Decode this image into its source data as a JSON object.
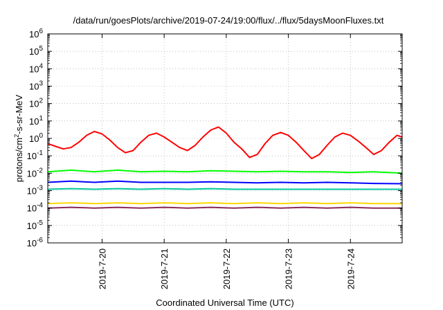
{
  "chart_data": {
    "type": "line",
    "title": "/data/run/goesPlots/archive/2019-07-24/19:00/flux/../flux/5daysMoonFluxes.txt",
    "xlabel": "Coordinated Universal Time (UTC)",
    "ylabel": "protons/cm2-s-sr-MeV",
    "ylabel_main": "protons/cm",
    "ylabel_sup": "2",
    "ylabel_rest": "-s-sr-MeV",
    "yscale": "log",
    "ylim": [
      1e-06,
      1000000.0
    ],
    "xlim": [
      "2019-07-19 03:00",
      "2019-07-24 20:00"
    ],
    "x_ticks": [
      "2019-7-20",
      "2019-7-21",
      "2019-7-22",
      "2019-7-23",
      "2019-7-24"
    ],
    "y_ticks": [
      {
        "base": "10",
        "exp": "-6"
      },
      {
        "base": "10",
        "exp": "-5"
      },
      {
        "base": "10",
        "exp": "-4"
      },
      {
        "base": "10",
        "exp": "-3"
      },
      {
        "base": "10",
        "exp": "-2"
      },
      {
        "base": "10",
        "exp": "-1"
      },
      {
        "base": "10",
        "exp": "0"
      },
      {
        "base": "10",
        "exp": "1"
      },
      {
        "base": "10",
        "exp": "2"
      },
      {
        "base": "10",
        "exp": "3"
      },
      {
        "base": "10",
        "exp": "4"
      },
      {
        "base": "10",
        "exp": "5"
      },
      {
        "base": "10",
        "exp": "6"
      }
    ],
    "grid": true,
    "series": [
      {
        "color": "#ff0000",
        "x": [
          "2019-07-19 03:00",
          "2019-07-19 06:00",
          "2019-07-19 09:00",
          "2019-07-19 12:00",
          "2019-07-19 15:00",
          "2019-07-19 18:00",
          "2019-07-19 21:00",
          "2019-07-20 00:00",
          "2019-07-20 03:00",
          "2019-07-20 06:00",
          "2019-07-20 09:00",
          "2019-07-20 12:00",
          "2019-07-20 15:00",
          "2019-07-20 18:00",
          "2019-07-20 21:00",
          "2019-07-21 00:00",
          "2019-07-21 03:00",
          "2019-07-21 06:00",
          "2019-07-21 09:00",
          "2019-07-21 12:00",
          "2019-07-21 15:00",
          "2019-07-21 18:00",
          "2019-07-21 21:00",
          "2019-07-22 00:00",
          "2019-07-22 03:00",
          "2019-07-22 06:00",
          "2019-07-22 09:00",
          "2019-07-22 12:00",
          "2019-07-22 15:00",
          "2019-07-22 18:00",
          "2019-07-22 21:00",
          "2019-07-23 00:00",
          "2019-07-23 03:00",
          "2019-07-23 06:00",
          "2019-07-23 09:00",
          "2019-07-23 12:00",
          "2019-07-23 15:00",
          "2019-07-23 18:00",
          "2019-07-23 21:00",
          "2019-07-24 00:00",
          "2019-07-24 03:00",
          "2019-07-24 06:00",
          "2019-07-24 09:00",
          "2019-07-24 12:00",
          "2019-07-24 15:00",
          "2019-07-24 18:00",
          "2019-07-24 20:00"
        ],
        "y": [
          0.5,
          0.35,
          0.25,
          0.3,
          0.6,
          1.5,
          2.5,
          1.8,
          0.8,
          0.3,
          0.15,
          0.2,
          0.6,
          1.5,
          2.0,
          1.2,
          0.6,
          0.3,
          0.2,
          0.4,
          1.2,
          3.0,
          4.5,
          2.0,
          0.6,
          0.25,
          0.08,
          0.12,
          0.5,
          1.5,
          2.2,
          1.5,
          0.6,
          0.2,
          0.07,
          0.12,
          0.4,
          1.2,
          2.0,
          1.5,
          0.7,
          0.3,
          0.12,
          0.2,
          0.6,
          1.5,
          1.2
        ]
      },
      {
        "color": "#00ff00",
        "x": [
          "2019-07-19 03:00",
          "2019-07-19 12:00",
          "2019-07-19 21:00",
          "2019-07-20 06:00",
          "2019-07-20 15:00",
          "2019-07-21 00:00",
          "2019-07-21 09:00",
          "2019-07-21 18:00",
          "2019-07-22 03:00",
          "2019-07-22 12:00",
          "2019-07-22 21:00",
          "2019-07-23 06:00",
          "2019-07-23 15:00",
          "2019-07-24 00:00",
          "2019-07-24 09:00",
          "2019-07-24 20:00"
        ],
        "y": [
          0.012,
          0.015,
          0.012,
          0.015,
          0.012,
          0.013,
          0.012,
          0.014,
          0.013,
          0.012,
          0.013,
          0.012,
          0.012,
          0.011,
          0.012,
          0.01
        ]
      },
      {
        "color": "#0000ff",
        "x": [
          "2019-07-19 03:00",
          "2019-07-19 12:00",
          "2019-07-19 21:00",
          "2019-07-20 06:00",
          "2019-07-20 15:00",
          "2019-07-21 00:00",
          "2019-07-21 09:00",
          "2019-07-21 18:00",
          "2019-07-22 03:00",
          "2019-07-22 12:00",
          "2019-07-22 21:00",
          "2019-07-23 06:00",
          "2019-07-23 15:00",
          "2019-07-24 00:00",
          "2019-07-24 09:00",
          "2019-07-24 20:00"
        ],
        "y": [
          0.003,
          0.0035,
          0.003,
          0.0035,
          0.003,
          0.003,
          0.003,
          0.0032,
          0.003,
          0.0028,
          0.003,
          0.0028,
          0.003,
          0.0028,
          0.0026,
          0.0025
        ]
      },
      {
        "color": "#00c8a0",
        "x": [
          "2019-07-19 03:00",
          "2019-07-19 12:00",
          "2019-07-19 21:00",
          "2019-07-20 06:00",
          "2019-07-20 15:00",
          "2019-07-21 00:00",
          "2019-07-21 09:00",
          "2019-07-21 18:00",
          "2019-07-22 03:00",
          "2019-07-22 12:00",
          "2019-07-22 21:00",
          "2019-07-23 06:00",
          "2019-07-23 15:00",
          "2019-07-24 00:00",
          "2019-07-24 09:00",
          "2019-07-24 20:00"
        ],
        "y": [
          0.0012,
          0.0013,
          0.0012,
          0.0013,
          0.0012,
          0.0013,
          0.0012,
          0.0013,
          0.0012,
          0.0012,
          0.0012,
          0.0012,
          0.0012,
          0.0012,
          0.0012,
          0.0012
        ]
      },
      {
        "color": "#ffd700",
        "x": [
          "2019-07-19 03:00",
          "2019-07-19 12:00",
          "2019-07-19 21:00",
          "2019-07-20 06:00",
          "2019-07-20 15:00",
          "2019-07-21 00:00",
          "2019-07-21 09:00",
          "2019-07-21 18:00",
          "2019-07-22 03:00",
          "2019-07-22 12:00",
          "2019-07-22 21:00",
          "2019-07-23 06:00",
          "2019-07-23 15:00",
          "2019-07-24 00:00",
          "2019-07-24 09:00",
          "2019-07-24 20:00"
        ],
        "y": [
          0.00018,
          0.0002,
          0.00018,
          0.0002,
          0.00018,
          0.0002,
          0.00018,
          0.0002,
          0.00018,
          0.0002,
          0.00018,
          0.0002,
          0.00018,
          0.0002,
          0.00018,
          0.00018
        ]
      },
      {
        "color": "#8b2a5a",
        "x": [
          "2019-07-19 03:00",
          "2019-07-19 12:00",
          "2019-07-19 21:00",
          "2019-07-20 06:00",
          "2019-07-20 15:00",
          "2019-07-21 00:00",
          "2019-07-21 09:00",
          "2019-07-21 18:00",
          "2019-07-22 03:00",
          "2019-07-22 12:00",
          "2019-07-22 21:00",
          "2019-07-23 06:00",
          "2019-07-23 15:00",
          "2019-07-24 00:00",
          "2019-07-24 09:00",
          "2019-07-24 20:00"
        ],
        "y": [
          0.0001,
          0.00011,
          0.0001,
          0.00011,
          0.0001,
          0.00011,
          0.0001,
          0.00011,
          0.0001,
          0.00011,
          0.0001,
          0.00011,
          0.0001,
          0.00011,
          0.0001,
          0.0001
        ]
      }
    ]
  }
}
